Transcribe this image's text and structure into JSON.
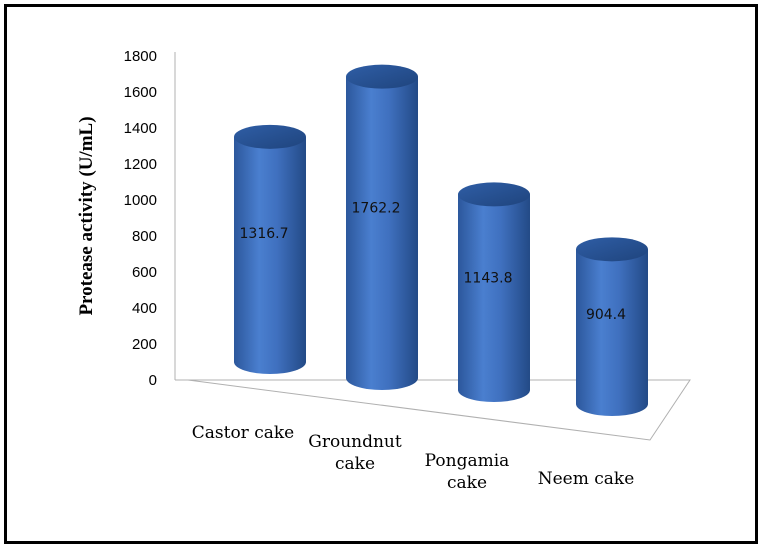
{
  "chart_data": {
    "type": "bar",
    "style": "3d-cylinder",
    "categories": [
      "Castor cake",
      "Groundnut cake",
      "Pongamia cake",
      "Neem cake"
    ],
    "category_lines": [
      [
        "Castor cake"
      ],
      [
        "Groundnut",
        "cake"
      ],
      [
        "Pongamia",
        "cake"
      ],
      [
        "Neem cake"
      ]
    ],
    "values": [
      1316.7,
      1762.2,
      1143.8,
      904.4
    ],
    "value_labels": [
      "1316.7",
      "1762.2",
      "1143.8",
      "904.4"
    ],
    "title": "",
    "xlabel": "",
    "ylabel": "Protease activity (U/mL)",
    "ylim": [
      0,
      1800
    ],
    "yticks": [
      0,
      200,
      400,
      600,
      800,
      1000,
      1200,
      1400,
      1600,
      1800
    ],
    "grid": false,
    "legend": "none",
    "bar_color": "#3f6fbf"
  }
}
